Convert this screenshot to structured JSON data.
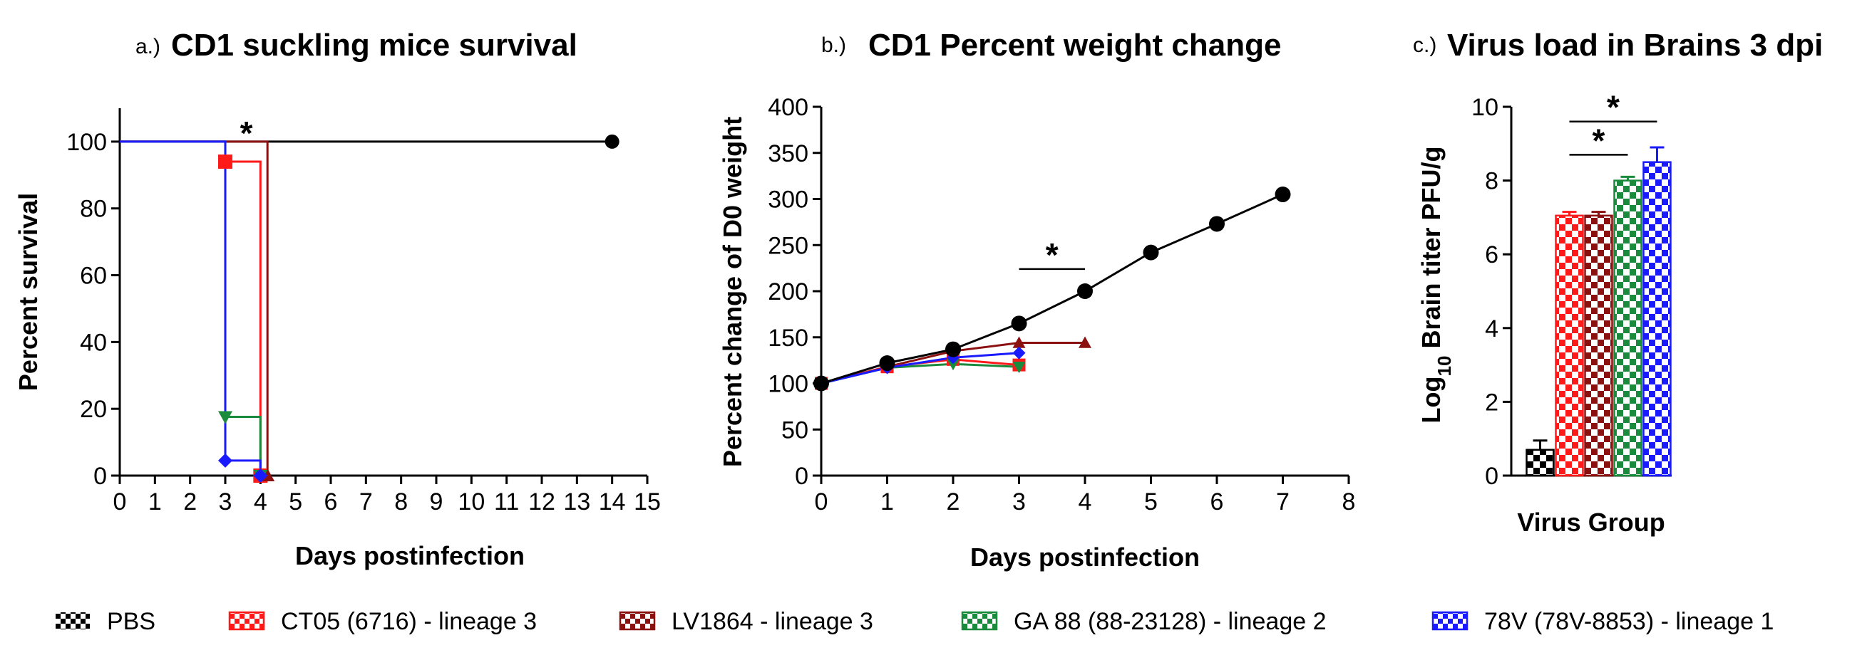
{
  "colors": {
    "PBS": "#000000",
    "CT05": "#ff1a1a",
    "LV1864": "#8b1010",
    "GA88": "#1a8a3c",
    "78V": "#1a1aff"
  },
  "legend": [
    {
      "key": "PBS",
      "label": "PBS"
    },
    {
      "key": "CT05",
      "label": "CT05 (6716) - lineage 3"
    },
    {
      "key": "LV1864",
      "label": "LV1864 - lineage 3"
    },
    {
      "key": "GA88",
      "label": "GA 88 (88-23128) - lineage 2"
    },
    {
      "key": "78V",
      "label": "78V (78V-8853) - lineage 1"
    }
  ],
  "panels": {
    "a": {
      "letter": "a.)",
      "title": "CD1 suckling mice survival"
    },
    "b": {
      "letter": "b.)",
      "title": "CD1 Percent weight change"
    },
    "c": {
      "letter": "c.)",
      "title": "Virus load in Brains 3 dpi"
    }
  },
  "chart_data": [
    {
      "id": "a",
      "type": "line",
      "subtype": "kaplan-meier",
      "title": "CD1 suckling mice survival",
      "xlabel": "Days postinfection",
      "ylabel": "Percent survival",
      "xlim": [
        0,
        15
      ],
      "ylim": [
        0,
        110
      ],
      "xticks": [
        0,
        1,
        2,
        3,
        4,
        5,
        6,
        7,
        8,
        9,
        10,
        11,
        12,
        13,
        14,
        15
      ],
      "yticks": [
        0,
        20,
        40,
        60,
        80,
        100
      ],
      "series": [
        {
          "key": "PBS",
          "name": "PBS",
          "marker": "circle",
          "steps": [
            [
              0,
              100
            ],
            [
              14,
              100
            ]
          ],
          "points": [
            [
              14,
              100
            ]
          ]
        },
        {
          "key": "CT05",
          "name": "CT05 (6716) - lineage 3",
          "marker": "square",
          "steps": [
            [
              0,
              100
            ],
            [
              3,
              100
            ],
            [
              3,
              94
            ],
            [
              4,
              94
            ],
            [
              4,
              0
            ]
          ],
          "points": [
            [
              3,
              94
            ],
            [
              4,
              0
            ]
          ]
        },
        {
          "key": "LV1864",
          "name": "LV1864 - lineage 3",
          "marker": "triangle-up",
          "steps": [
            [
              0,
              100
            ],
            [
              4.2,
              100
            ],
            [
              4.2,
              0
            ]
          ],
          "points": [
            [
              4.2,
              0
            ]
          ]
        },
        {
          "key": "GA88",
          "name": "GA 88 (88-23128) - lineage 2",
          "marker": "triangle-down",
          "steps": [
            [
              0,
              100
            ],
            [
              3,
              100
            ],
            [
              3,
              17.6
            ],
            [
              4,
              17.6
            ],
            [
              4,
              0
            ]
          ],
          "points": [
            [
              3,
              17.6
            ],
            [
              4,
              0
            ]
          ]
        },
        {
          "key": "78V",
          "name": "78V (78V-8853) - lineage 1",
          "marker": "diamond",
          "steps": [
            [
              0,
              100
            ],
            [
              3,
              100
            ],
            [
              3,
              4.5
            ],
            [
              4,
              4.5
            ],
            [
              4,
              0
            ]
          ],
          "points": [
            [
              3,
              4.5
            ],
            [
              4,
              0
            ]
          ]
        }
      ],
      "annotations": [
        {
          "text": "*",
          "x": 3.6,
          "y": 103
        }
      ]
    },
    {
      "id": "b",
      "type": "line",
      "title": "CD1 Percent weight change",
      "xlabel": "Days postinfection",
      "ylabel": "Percent change of D0 weight",
      "xlim": [
        0,
        8
      ],
      "ylim": [
        0,
        400
      ],
      "xticks": [
        0,
        1,
        2,
        3,
        4,
        5,
        6,
        7,
        8
      ],
      "yticks": [
        0,
        50,
        100,
        150,
        200,
        250,
        300,
        350,
        400
      ],
      "series": [
        {
          "key": "PBS",
          "name": "PBS",
          "marker": "circle",
          "x": [
            0,
            1,
            2,
            3,
            4,
            5,
            6,
            7
          ],
          "y": [
            100,
            122,
            137,
            165,
            200,
            242,
            273,
            305
          ]
        },
        {
          "key": "LV1864",
          "name": "LV1864 - lineage 3",
          "marker": "triangle-up",
          "x": [
            0,
            1,
            2,
            3,
            4
          ],
          "y": [
            100,
            118,
            135,
            144,
            144
          ]
        },
        {
          "key": "CT05",
          "name": "CT05 (6716) - lineage 3",
          "marker": "square",
          "x": [
            0,
            1,
            2,
            3
          ],
          "y": [
            100,
            118,
            126,
            120
          ]
        },
        {
          "key": "GA88",
          "name": "GA 88 (88-23128) - lineage 2",
          "marker": "triangle-down",
          "x": [
            0,
            1,
            2,
            3
          ],
          "y": [
            100,
            117,
            121,
            118
          ]
        },
        {
          "key": "78V",
          "name": "78V (78V-8853) - lineage 1",
          "marker": "diamond",
          "x": [
            0,
            1,
            2,
            3
          ],
          "y": [
            100,
            117,
            128,
            133
          ]
        }
      ],
      "annotations": [
        {
          "text": "*",
          "x": 3.5,
          "y": 222,
          "bracket": [
            3,
            4,
            224
          ]
        }
      ]
    },
    {
      "id": "c",
      "type": "bar",
      "title": "Virus load in Brains 3 dpi",
      "xlabel": "Virus Group",
      "ylabel_prefix": "Log",
      "ylabel_sub": "10",
      "ylabel_suffix": " Brain titer PFU/g",
      "ylim": [
        0,
        10
      ],
      "yticks": [
        0,
        2,
        4,
        6,
        8,
        10
      ],
      "bars": [
        {
          "key": "PBS",
          "value": 0.7,
          "error": 0.25
        },
        {
          "key": "CT05",
          "value": 7.05,
          "error": 0.1
        },
        {
          "key": "LV1864",
          "value": 7.05,
          "error": 0.1
        },
        {
          "key": "GA88",
          "value": 8.0,
          "error": 0.1
        },
        {
          "key": "78V",
          "value": 8.5,
          "error": 0.4
        }
      ],
      "comparisons": [
        {
          "from": 1,
          "to": 3,
          "y": 8.7,
          "text": "*"
        },
        {
          "from": 1,
          "to": 4,
          "y": 9.6,
          "text": "*"
        }
      ]
    }
  ]
}
